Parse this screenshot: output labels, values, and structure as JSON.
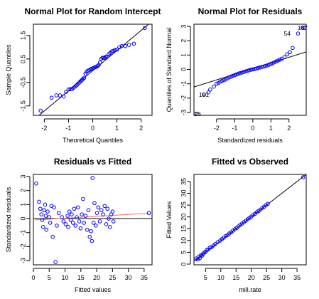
{
  "chart_data": [
    {
      "type": "scatter",
      "title": "Normal Plot for Random Intercept",
      "xlabel": "Theoretical Quantiles",
      "ylabel": "Sample Quantiles",
      "xlim": [
        -2.45,
        2.45
      ],
      "ylim": [
        -1.9,
        1.98
      ],
      "xticks": [
        -2,
        -1,
        0,
        1,
        2
      ],
      "xtick_labels": [
        "-2",
        "-1",
        "0",
        "1",
        "2"
      ],
      "yticks": [
        -1.5,
        -0.5,
        0.5,
        1.5
      ],
      "ytick_labels": [
        "-1.5",
        "-0.5",
        "0.5",
        "1.5"
      ],
      "reference_line": [
        [
          -2.45,
          -2.1
        ],
        [
          2.45,
          2.1
        ]
      ],
      "x": [
        -2.15,
        -1.7,
        -1.5,
        -1.35,
        -1.2,
        -1.1,
        -1.0,
        -0.92,
        -0.85,
        -0.78,
        -0.72,
        -0.66,
        -0.6,
        -0.55,
        -0.5,
        -0.45,
        -0.4,
        -0.35,
        -0.3,
        -0.25,
        -0.2,
        -0.15,
        -0.1,
        -0.05,
        0.0,
        0.05,
        0.1,
        0.15,
        0.2,
        0.25,
        0.3,
        0.35,
        0.4,
        0.45,
        0.5,
        0.55,
        0.6,
        0.66,
        0.72,
        0.78,
        0.85,
        0.92,
        1.0,
        1.1,
        1.2,
        1.35,
        1.5,
        1.7,
        2.15
      ],
      "y": [
        -1.7,
        -1.15,
        -1.05,
        -1.05,
        -1.1,
        -0.9,
        -0.8,
        -0.78,
        -0.78,
        -0.72,
        -0.67,
        -0.62,
        -0.55,
        -0.5,
        -0.45,
        -0.4,
        -0.35,
        -0.3,
        -0.12,
        -0.05,
        0.0,
        0.02,
        0.05,
        0.08,
        0.1,
        0.13,
        0.15,
        0.17,
        0.2,
        0.25,
        0.35,
        0.5,
        0.55,
        0.55,
        0.55,
        0.6,
        0.6,
        0.7,
        0.75,
        0.82,
        0.85,
        0.88,
        0.9,
        1.0,
        1.05,
        1.05,
        1.1,
        1.15,
        1.82
      ],
      "color": "#0000ff"
    },
    {
      "type": "scatter",
      "title": "Normal Plot for Residuals",
      "xlabel": "Standardized residuals",
      "ylabel": "Quantiles of Standard Normal",
      "xlim": [
        -3.25,
        2.95
      ],
      "ylim": [
        -3.2,
        3.15
      ],
      "xticks": [
        -2,
        -1,
        0,
        1,
        2
      ],
      "xtick_labels": [
        "-2",
        "-1",
        "0",
        "1",
        "2"
      ],
      "yticks": [
        -3,
        -2,
        -1,
        0,
        1,
        2,
        3
      ],
      "ytick_labels": [
        "-3",
        "-2",
        "-1",
        "0",
        "1",
        "2",
        "3"
      ],
      "reference_line": [
        [
          -3.25,
          -1.22
        ],
        [
          2.95,
          1.22
        ]
      ],
      "point_labels": [
        {
          "text": "167",
          "x": 2.75,
          "y": 2.9
        },
        {
          "text": "54",
          "x": 1.9,
          "y": 2.5
        },
        {
          "text": "191",
          "x": -2.7,
          "y": -1.75
        },
        {
          "text": "26",
          "x": -3.05,
          "y": -3.1
        }
      ],
      "x": [
        -3.1,
        -2.7,
        -2.45,
        -2.35,
        -2.15,
        -2.0,
        -1.9,
        -1.8,
        -1.7,
        -1.6,
        -1.5,
        -1.4,
        -1.3,
        -1.2,
        -1.1,
        -1.0,
        -0.9,
        -0.8,
        -0.7,
        -0.6,
        -0.5,
        -0.4,
        -0.3,
        -0.2,
        -0.1,
        0.0,
        0.1,
        0.2,
        0.3,
        0.4,
        0.5,
        0.6,
        0.7,
        0.8,
        0.9,
        1.0,
        1.1,
        1.2,
        1.3,
        1.4,
        1.5,
        1.6,
        1.75,
        1.9,
        2.05,
        2.2,
        2.5,
        2.75,
        2.85
      ],
      "y": [
        -3.1,
        -1.75,
        -1.6,
        -1.4,
        -1.2,
        -1.0,
        -0.95,
        -0.85,
        -0.8,
        -0.75,
        -0.7,
        -0.62,
        -0.55,
        -0.5,
        -0.45,
        -0.4,
        -0.35,
        -0.3,
        -0.26,
        -0.22,
        -0.18,
        -0.14,
        -0.1,
        -0.06,
        -0.02,
        0.0,
        0.03,
        0.06,
        0.1,
        0.13,
        0.17,
        0.2,
        0.24,
        0.28,
        0.33,
        0.38,
        0.43,
        0.5,
        0.56,
        0.62,
        0.68,
        0.75,
        0.85,
        1.05,
        1.2,
        1.5,
        2.5,
        2.9,
        2.9
      ],
      "color": "#0000ff"
    },
    {
      "type": "scatter",
      "title": "Residuals vs Fitted",
      "xlabel": "Fitted values",
      "ylabel": "Standardized residuals",
      "xlim": [
        0,
        37.5
      ],
      "ylim": [
        -3.3,
        3.15
      ],
      "xticks": [
        0,
        5,
        10,
        15,
        20,
        25,
        30,
        35
      ],
      "xtick_labels": [
        "0",
        "5",
        "10",
        "15",
        "20",
        "25",
        "30",
        "35"
      ],
      "yticks": [
        -3,
        -2,
        -1,
        0,
        1,
        2,
        3
      ],
      "ytick_labels": [
        "-3",
        "-2",
        "-1",
        "0",
        "1",
        "2",
        "3"
      ],
      "hline": 0,
      "smooth_line": [
        [
          0.5,
          -0.1
        ],
        [
          36.5,
          0.38
        ]
      ],
      "smooth_color": "#ff6666",
      "x": [
        0.9,
        1.8,
        2.2,
        2.5,
        2.8,
        3.1,
        3.4,
        3.7,
        3.9,
        4.1,
        4.5,
        5.0,
        5.3,
        5.7,
        6.1,
        6.5,
        7.0,
        7.4,
        8.0,
        9.0,
        9.5,
        10.2,
        10.8,
        11.0,
        11.4,
        11.8,
        12.1,
        12.5,
        12.9,
        13.3,
        13.7,
        14.1,
        14.5,
        14.9,
        15.3,
        15.7,
        16.0,
        16.5,
        17.0,
        17.4,
        17.8,
        18.2,
        18.5,
        18.7,
        19.0,
        19.3,
        19.7,
        20.1,
        20.5,
        21.0,
        21.5,
        22.0,
        22.5,
        23.0,
        23.4,
        23.8,
        24.2,
        24.6,
        25.0,
        25.3,
        36.5
      ],
      "y": [
        2.5,
        1.2,
        0.7,
        0.3,
        -0.1,
        -0.6,
        0.6,
        1.0,
        0.2,
        -0.8,
        0.5,
        0.1,
        -0.3,
        0.9,
        -1.3,
        0.8,
        -3.1,
        -0.5,
        0.4,
        0.1,
        -0.2,
        -0.4,
        0.2,
        -0.6,
        0.5,
        -0.1,
        0.3,
        -0.3,
        0.7,
        -0.5,
        0.1,
        0.8,
        -0.2,
        -0.7,
        0.3,
        1.4,
        -0.3,
        0.2,
        -0.8,
        0.6,
        -1.3,
        -0.9,
        -1.6,
        2.9,
        -0.3,
        1.1,
        -0.5,
        0.4,
        0.8,
        -0.2,
        0.6,
        0.3,
        0.9,
        -0.4,
        0.7,
        0.0,
        -0.6,
        0.3,
        0.5,
        -0.2,
        0.4
      ],
      "color": "#0000ff"
    },
    {
      "type": "scatter",
      "title": "Fitted vs Observed",
      "xlabel": "mill.rate",
      "ylabel": "Fitted Values",
      "xlim": [
        1.2,
        38
      ],
      "ylim": [
        -0.3,
        38
      ],
      "xticks": [
        5,
        10,
        15,
        20,
        25,
        30,
        35
      ],
      "xtick_labels": [
        "5",
        "10",
        "15",
        "20",
        "25",
        "30",
        "35"
      ],
      "yticks": [
        0,
        5,
        10,
        15,
        20,
        25,
        30,
        35
      ],
      "ytick_labels": [
        "0",
        "5",
        "10",
        "15",
        "20",
        "25",
        "30",
        "35"
      ],
      "reference_line": [
        [
          1.2,
          1.2
        ],
        [
          38,
          38
        ]
      ],
      "x": [
        2.0,
        2.4,
        2.8,
        3.1,
        3.5,
        3.8,
        4.2,
        4.6,
        5.0,
        5.4,
        5.9,
        6.4,
        7.0,
        7.6,
        8.2,
        9.0,
        9.8,
        10.4,
        11.0,
        11.6,
        12.2,
        12.8,
        13.4,
        14.0,
        14.6,
        15.2,
        15.8,
        16.4,
        17.0,
        17.6,
        18.2,
        18.8,
        19.4,
        20.0,
        20.6,
        21.2,
        21.8,
        22.4,
        23.0,
        23.6,
        24.2,
        24.8,
        25.4,
        37.0
      ],
      "y": [
        2.4,
        2.0,
        3.2,
        2.5,
        3.8,
        3.5,
        4.3,
        4.9,
        5.2,
        6.0,
        6.2,
        7.0,
        7.2,
        7.9,
        8.5,
        9.3,
        10.0,
        10.6,
        11.2,
        11.9,
        12.3,
        13.0,
        13.5,
        14.2,
        14.8,
        15.3,
        16.0,
        16.7,
        17.2,
        17.8,
        18.4,
        19.0,
        19.6,
        20.1,
        20.8,
        21.3,
        22.0,
        22.5,
        23.1,
        23.8,
        24.3,
        25.0,
        25.5,
        36.8
      ],
      "color": "#0000ff"
    }
  ]
}
